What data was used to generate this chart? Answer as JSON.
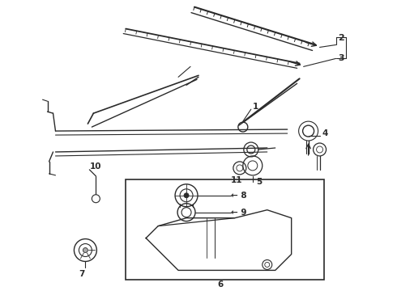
{
  "bg_color": "#ffffff",
  "line_color": "#2a2a2a",
  "label_color": "#111111",
  "fig_width": 4.9,
  "fig_height": 3.6,
  "dpi": 100
}
